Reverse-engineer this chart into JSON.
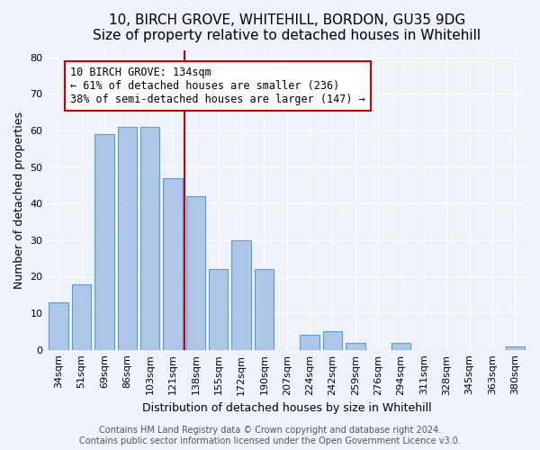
{
  "title": "10, BIRCH GROVE, WHITEHILL, BORDON, GU35 9DG",
  "subtitle": "Size of property relative to detached houses in Whitehill",
  "xlabel": "Distribution of detached houses by size in Whitehill",
  "ylabel": "Number of detached properties",
  "bar_labels": [
    "34sqm",
    "51sqm",
    "69sqm",
    "86sqm",
    "103sqm",
    "121sqm",
    "138sqm",
    "155sqm",
    "172sqm",
    "190sqm",
    "207sqm",
    "224sqm",
    "242sqm",
    "259sqm",
    "276sqm",
    "294sqm",
    "311sqm",
    "328sqm",
    "345sqm",
    "363sqm",
    "380sqm"
  ],
  "bar_heights": [
    13,
    18,
    59,
    61,
    61,
    47,
    42,
    22,
    30,
    22,
    0,
    4,
    5,
    2,
    0,
    2,
    0,
    0,
    0,
    0,
    1
  ],
  "bar_color": "#aec6e8",
  "bar_edgecolor": "#5b9bd5",
  "vline_x": 5.5,
  "vline_color": "#cc0000",
  "annotation_text": "10 BIRCH GROVE: 134sqm\n← 61% of detached houses are smaller (236)\n38% of semi-detached houses are larger (147) →",
  "annotation_box_edgecolor": "#cc0000",
  "annotation_box_facecolor": "#ffffff",
  "ylim": [
    0,
    82
  ],
  "yticks": [
    0,
    10,
    20,
    30,
    40,
    50,
    60,
    70,
    80
  ],
  "footer1": "Contains HM Land Registry data © Crown copyright and database right 2024.",
  "footer2": "Contains public sector information licensed under the Open Government Licence v3.0.",
  "bg_color": "#eef2f9",
  "grid_color": "#ffffff",
  "title_fontsize": 11,
  "subtitle_fontsize": 10,
  "axis_label_fontsize": 9,
  "tick_fontsize": 8,
  "annotation_fontsize": 8.5,
  "footer_fontsize": 7
}
